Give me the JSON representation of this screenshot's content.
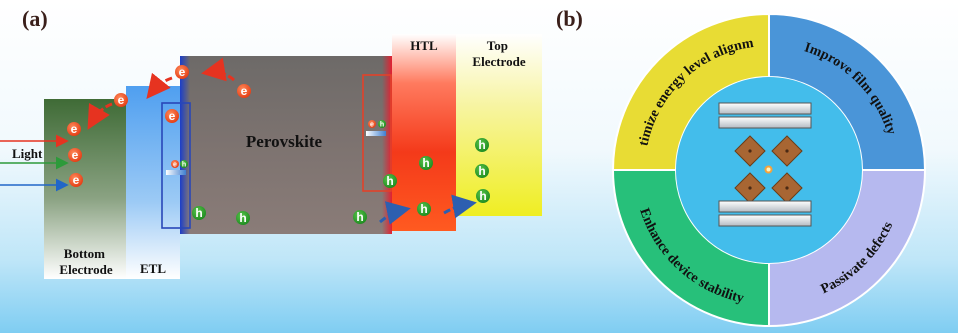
{
  "panel_a": {
    "label": "(a)",
    "layers": {
      "bottom_electrode": "Bottom\nElectrode",
      "etl": "ETL",
      "perovskite": "Perovskite",
      "htl": "HTL",
      "top_electrode": "Top\nElectrode"
    },
    "light_label": "Light",
    "electron_symbol": "e",
    "hole_symbol": "h",
    "colors": {
      "bottom_electrode_top": "#3f6b36",
      "etl": "#5aa9f0",
      "perovskite": "#7a7470",
      "htl": "#f2331a",
      "top_electrode": "#f4f21f",
      "electron": "#ee4a1c",
      "hole": "#2aa02a",
      "interface_box": "#e2422a"
    }
  },
  "panel_b": {
    "label": "(b)",
    "segments": [
      {
        "text": "Optimize energy level alignment",
        "color": "#e8dc34"
      },
      {
        "text": "Improve film quality",
        "color": "#4a95d8"
      },
      {
        "text": "Passivate defects",
        "color": "#b6b9ef"
      },
      {
        "text": "Enhance device stability",
        "color": "#27c07a"
      }
    ],
    "center_color": "#43bdeb",
    "octahedron_color": "#a86633"
  }
}
